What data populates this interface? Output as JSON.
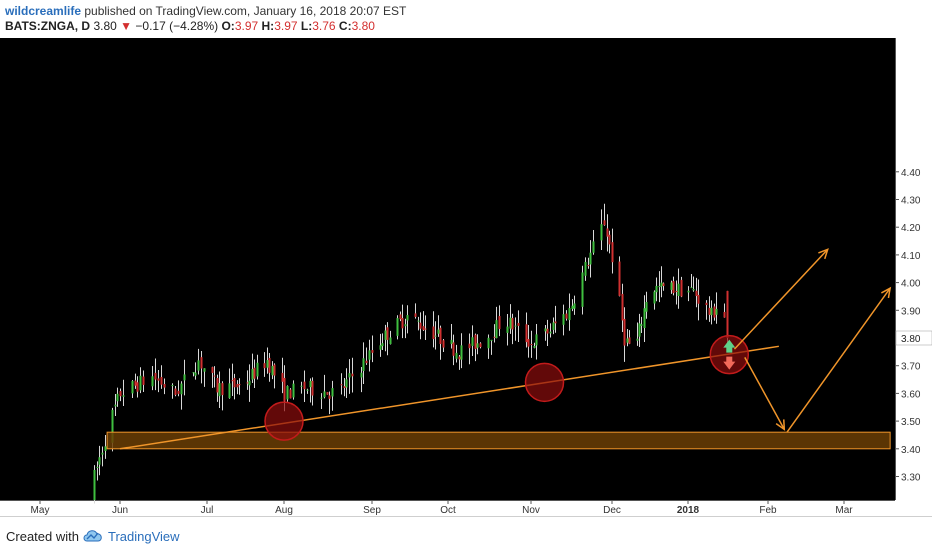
{
  "header": {
    "author": "wildcreamlife",
    "published": " published on TradingView.com, January 16, 2018 20:07 EST",
    "symbol": "BATS:ZNGA, D",
    "last": "3.80",
    "change": "−0.17 (−4.28%)",
    "o_label": "O:",
    "o": "3.97",
    "h_label": "H:",
    "h": "3.97",
    "l_label": "L:",
    "l": "3.76",
    "c_label": "C:",
    "c": "3.80"
  },
  "footer": {
    "created_with": "Created with",
    "brand": "TradingView"
  },
  "colors": {
    "background": "#000000",
    "up": "#3fbf3f",
    "down": "#d03030",
    "wick": "#d8d8d8",
    "trend": "#f0952a",
    "zone_fill": "#6b3e05",
    "circle": "#8b0d0d",
    "axis_label_bg": "#ffffff"
  },
  "chart_data": {
    "type": "candlestick",
    "title": "",
    "y_ticks": [
      "4.40",
      "4.30",
      "4.20",
      "4.10",
      "4.00",
      "3.90",
      "3.80",
      "3.70",
      "3.60",
      "3.50",
      "3.40",
      "3.30"
    ],
    "y_range": [
      3.22,
      4.42
    ],
    "current_price": 3.8,
    "x_ticks": [
      "May",
      "Jun",
      "Jul",
      "Aug",
      "Sep",
      "Oct",
      "Nov",
      "Dec",
      "2018",
      "Feb",
      "Mar"
    ],
    "x_tick_dates": [
      "2017-05-01",
      "2017-06-01",
      "2017-07-01",
      "2017-08-01",
      "2017-09-01",
      "2017-10-01",
      "2017-11-01",
      "2017-12-01",
      "2018-01-01",
      "2018-02-01",
      "2018-03-01"
    ],
    "price_path": [
      {
        "date": "2017-05-20",
        "price": 3.23
      },
      {
        "date": "2017-05-27",
        "price": 3.47
      },
      {
        "date": "2017-06-01",
        "price": 3.6
      },
      {
        "date": "2017-06-12",
        "price": 3.66
      },
      {
        "date": "2017-06-20",
        "price": 3.6
      },
      {
        "date": "2017-06-28",
        "price": 3.72
      },
      {
        "date": "2017-07-05",
        "price": 3.62
      },
      {
        "date": "2017-07-15",
        "price": 3.63
      },
      {
        "date": "2017-07-25",
        "price": 3.72
      },
      {
        "date": "2017-08-01",
        "price": 3.6
      },
      {
        "date": "2017-08-08",
        "price": 3.62
      },
      {
        "date": "2017-08-20",
        "price": 3.6
      },
      {
        "date": "2017-08-28",
        "price": 3.7
      },
      {
        "date": "2017-09-05",
        "price": 3.8
      },
      {
        "date": "2017-09-15",
        "price": 3.88
      },
      {
        "date": "2017-09-25",
        "price": 3.82
      },
      {
        "date": "2017-10-05",
        "price": 3.75
      },
      {
        "date": "2017-10-15",
        "price": 3.8
      },
      {
        "date": "2017-10-22",
        "price": 3.87
      },
      {
        "date": "2017-11-01",
        "price": 3.78
      },
      {
        "date": "2017-11-08",
        "price": 3.83
      },
      {
        "date": "2017-11-15",
        "price": 3.9
      },
      {
        "date": "2017-11-22",
        "price": 4.08
      },
      {
        "date": "2017-11-28",
        "price": 4.22
      },
      {
        "date": "2017-12-02",
        "price": 4.05
      },
      {
        "date": "2017-12-06",
        "price": 3.8
      },
      {
        "date": "2017-12-10",
        "price": 3.75
      },
      {
        "date": "2017-12-16",
        "price": 3.98
      },
      {
        "date": "2017-12-25",
        "price": 3.98
      },
      {
        "date": "2018-01-03",
        "price": 3.97
      },
      {
        "date": "2018-01-10",
        "price": 3.88
      },
      {
        "date": "2018-01-14",
        "price": 3.95
      },
      {
        "date": "2018-01-16",
        "price": 3.8
      }
    ],
    "annotations": {
      "support_zone": {
        "from": "2017-05-27",
        "to": "2018-03-18",
        "low": 3.4,
        "high": 3.46
      },
      "trendline": [
        {
          "date": "2017-06-01",
          "price": 3.4
        },
        {
          "date": "2018-02-05",
          "price": 3.77
        }
      ],
      "circles": [
        {
          "date": "2017-08-01",
          "price": 3.5
        },
        {
          "date": "2017-11-06",
          "price": 3.64
        },
        {
          "date": "2018-01-17",
          "price": 3.74
        }
      ],
      "arrows": [
        {
          "from": {
            "date": "2018-01-19",
            "price": 3.76
          },
          "to": {
            "date": "2018-02-23",
            "price": 4.12
          }
        },
        {
          "from": {
            "date": "2018-01-23",
            "price": 3.73
          },
          "to": {
            "date": "2018-02-07",
            "price": 3.47
          }
        },
        {
          "from": {
            "date": "2018-02-08",
            "price": 3.46
          },
          "to": {
            "date": "2018-03-18",
            "price": 3.98
          }
        }
      ]
    }
  }
}
